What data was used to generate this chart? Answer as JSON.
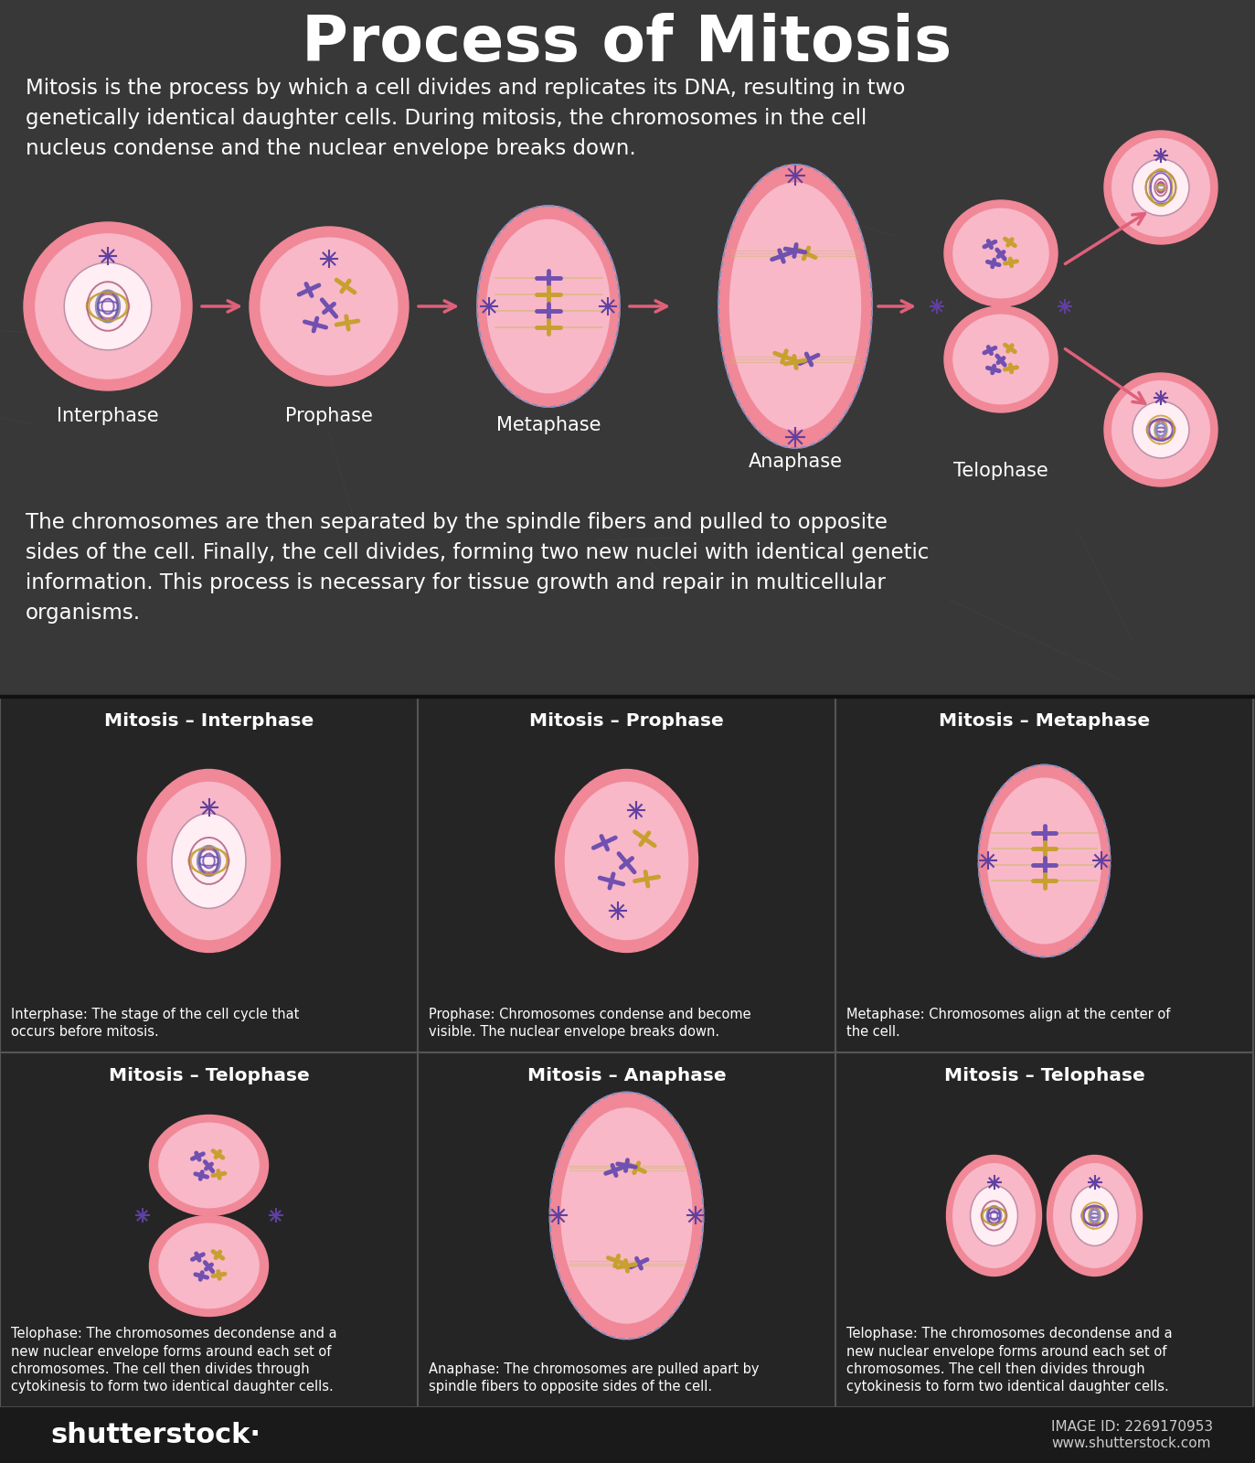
{
  "title": "Process of Mitosis",
  "bg_color": "#2e2e2e",
  "title_color": "#ffffff",
  "text_color": "#ffffff",
  "cell_outer_color": "#f08898",
  "cell_inner_color": "#f8b8c8",
  "cell_nucleus_color": "#ffeef4",
  "arrow_color": "#e0607a",
  "intro_text": "Mitosis is the process by which a cell divides and replicates its DNA, resulting in two\ngenetically identical daughter cells. During mitosis, the chromosomes in the cell\nnucleus condense and the nuclear envelope breaks down.",
  "closing_text": "The chromosomes are then separated by the spindle fibers and pulled to opposite\nsides of the cell. Finally, the cell divides, forming two new nuclei with identical genetic\ninformation. This process is necessary for tissue growth and repair in multicellular\norganisms.",
  "phases": [
    "Interphase",
    "Prophase",
    "Metaphase",
    "Anaphase",
    "Telophase"
  ],
  "panel_titles": [
    "Mitosis – Interphase",
    "Mitosis – Prophase",
    "Mitosis – Metaphase",
    "Mitosis – Telophase",
    "Mitosis – Anaphase",
    "Mitosis – Telophase"
  ],
  "panel_descriptions": [
    "Interphase: The stage of the cell cycle that\noccurs before mitosis.",
    "Prophase: Chromosomes condense and become\nvisible. The nuclear envelope breaks down.",
    "Metaphase: Chromosomes align at the center of\nthe cell.",
    "Telophase: The chromosomes decondense and a\nnew nuclear envelope forms around each set of\nchromosomes. The cell then divides through\ncytokinesis to form two identical daughter cells.",
    "Anaphase: The chromosomes are pulled apart by\nspindle fibers to opposite sides of the cell.",
    "Telophase: The chromosomes decondense and a\nnew nuclear envelope forms around each set of\nchromosomes. The cell then divides through\ncytokinesis to form two identical daughter cells."
  ],
  "panel_bg": "#252525",
  "panel_border": "#555555",
  "image_id": "IMAGE ID: 2269170953",
  "website": "www.shutterstock.com",
  "chrom_purple": "#7050b0",
  "chrom_yellow": "#c8a030",
  "spindle_color": "#8090c0",
  "star_color": "#6040a0"
}
